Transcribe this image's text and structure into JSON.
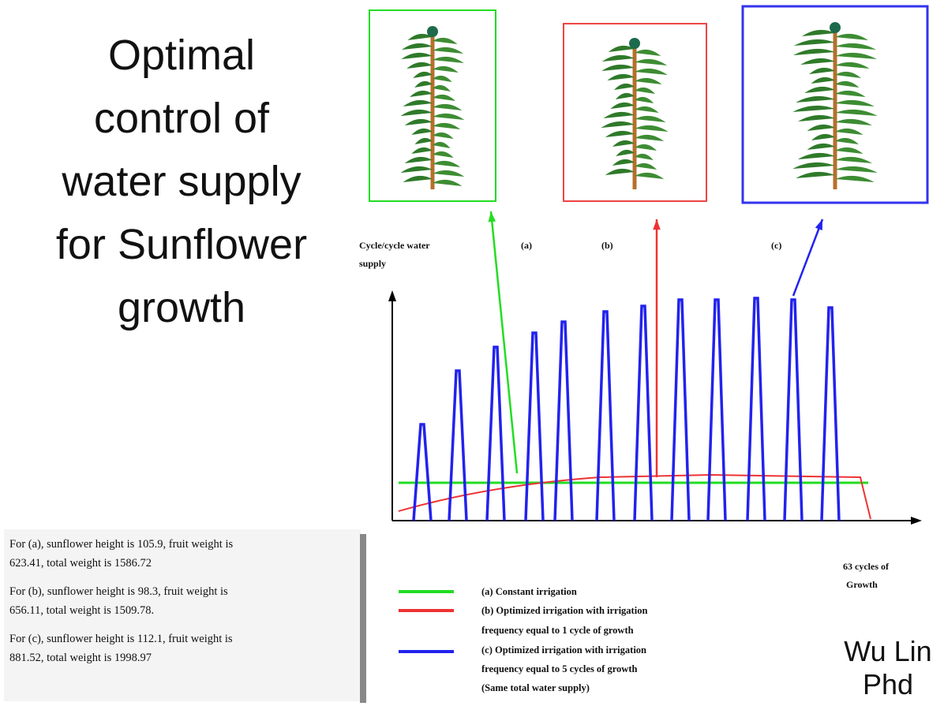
{
  "title_lines": [
    "Optimal",
    "control of",
    "water supply",
    "for Sunflower",
    "growth"
  ],
  "chart": {
    "y_label_lines": [
      "Cycle/cycle water",
      "supply"
    ],
    "x_label_lines": [
      "63 cycles of",
      "Growth"
    ],
    "case_labels": [
      "(a)",
      "(b)",
      "(c)"
    ]
  },
  "results": [
    [
      "For (a), sunflower height is 105.9, fruit weight is",
      "623.41, total weight is 1586.72"
    ],
    [
      "For (b), sunflower height is 98.3, fruit weight is",
      "656.11, total weight is 1509.78."
    ],
    [
      "For (c), sunflower height is 112.1, fruit weight is",
      "881.52, total weight is 1998.97"
    ]
  ],
  "legend": [
    {
      "lines": [
        "(a) Constant irrigation"
      ]
    },
    {
      "lines": [
        "(b) Optimized irrigation with irrigation",
        "frequency equal to 1 cycle of growth"
      ]
    },
    {
      "lines": [
        "(c) Optimized irrigation with irrigation",
        "frequency equal to 5 cycles of growth",
        "(Same total water supply)"
      ]
    }
  ],
  "author_lines": [
    "Wu Lin",
    "Phd"
  ]
}
